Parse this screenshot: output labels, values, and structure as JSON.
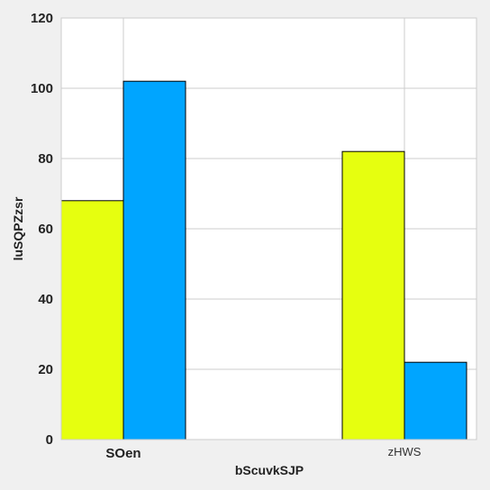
{
  "chart_data": {
    "type": "bar",
    "categories": [
      "SOen",
      "zHWS"
    ],
    "series": [
      {
        "values": [
          68,
          82
        ],
        "color": "#e6ff0f"
      },
      {
        "values": [
          102,
          22
        ],
        "color": "#00a5ff"
      }
    ],
    "xlabel": "bScuvkSJP",
    "ylabel": "luSQPZzsr",
    "ylim": [
      0,
      120
    ],
    "yticks": [
      0,
      20,
      40,
      60,
      80,
      100,
      120
    ],
    "grid": true,
    "legend": "none"
  }
}
